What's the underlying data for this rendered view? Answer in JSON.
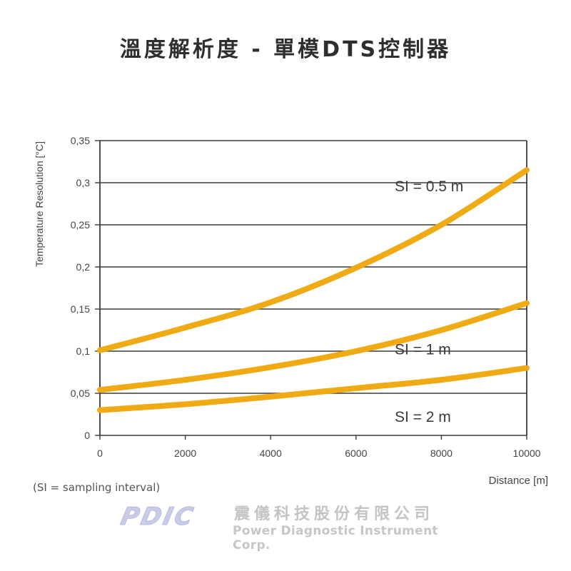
{
  "page": {
    "title": "溫度解析度 - 單模DTS控制器",
    "note": "(SI = sampling interval)"
  },
  "brand": {
    "logo_text": "PDIC",
    "company_zh": "震儀科技股份有限公司",
    "company_en": "Power Diagnostic Instrument Corp."
  },
  "colors": {
    "curve": "#f0aa14",
    "grid": "#3a3a3a",
    "text": "#444444"
  },
  "chart_data": {
    "type": "line",
    "title": "",
    "xlabel": "Distance [m]",
    "ylabel": "Temperature Resolution [°C]",
    "xlim": [
      0,
      10000
    ],
    "ylim": [
      0,
      0.35
    ],
    "x_ticks": [
      0,
      2000,
      4000,
      6000,
      8000,
      10000
    ],
    "x_tick_labels": [
      "0",
      "2000",
      "4000",
      "6000",
      "8000",
      "10000"
    ],
    "y_ticks": [
      0,
      0.05,
      0.1,
      0.15,
      0.2,
      0.25,
      0.3,
      0.35
    ],
    "y_tick_labels": [
      "0",
      "0,05",
      "0,1",
      "0,15",
      "0,2",
      "0,25",
      "0,3",
      "0,35"
    ],
    "grid": "horizontal",
    "series": [
      {
        "name": "SI = 0.5 m",
        "x": [
          0,
          2000,
          4000,
          6000,
          8000,
          10000
        ],
        "values": [
          0.101,
          0.128,
          0.158,
          0.199,
          0.25,
          0.315
        ]
      },
      {
        "name": "SI = 1 m",
        "x": [
          0,
          2000,
          4000,
          6000,
          8000,
          10000
        ],
        "values": [
          0.054,
          0.066,
          0.081,
          0.1,
          0.125,
          0.157
        ]
      },
      {
        "name": "SI = 2 m",
        "x": [
          0,
          2000,
          4000,
          6000,
          8000,
          10000
        ],
        "values": [
          0.03,
          0.037,
          0.046,
          0.056,
          0.066,
          0.08
        ]
      }
    ],
    "annotations": [
      "SI = 0.5 m",
      "SI = 1 m",
      "SI = 2 m"
    ]
  }
}
